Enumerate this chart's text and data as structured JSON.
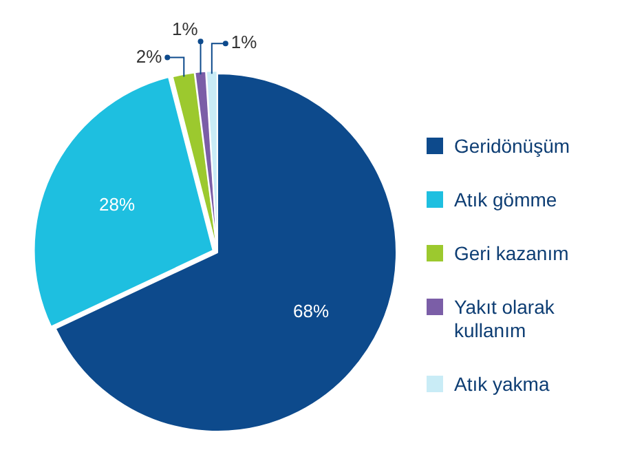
{
  "chart_data": {
    "type": "pie",
    "categories": [
      "Geridönüşüm",
      "Atık gömme",
      "Geri kazanım",
      "Yakıt olarak kullanım",
      "Atık yakma"
    ],
    "values": [
      68,
      28,
      2,
      1,
      1
    ],
    "colors": [
      "#0d4a8c",
      "#1ebfe0",
      "#9cc92e",
      "#7b5ea7",
      "#c9ecf6"
    ],
    "value_labels": [
      "68%",
      "28%",
      "2%",
      "1%",
      "1%"
    ],
    "legend": "right"
  }
}
